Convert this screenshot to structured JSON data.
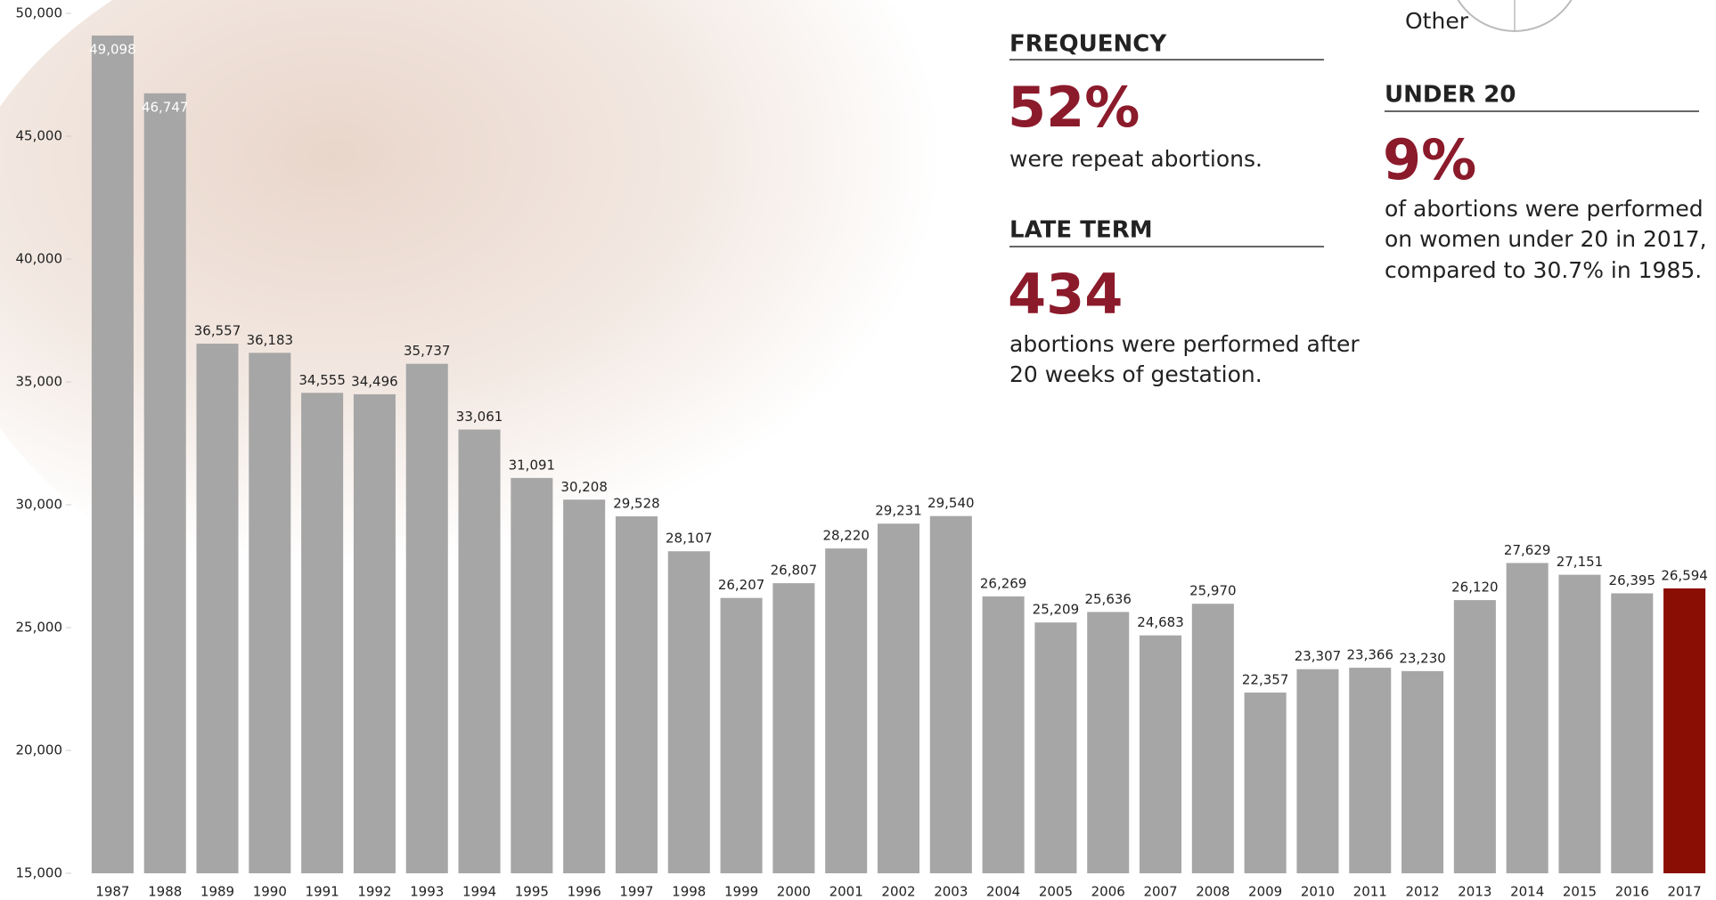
{
  "chart_data": {
    "type": "bar",
    "categories": [
      "1987",
      "1988",
      "1989",
      "1990",
      "1991",
      "1992",
      "1993",
      "1994",
      "1995",
      "1996",
      "1997",
      "1998",
      "1999",
      "2000",
      "2001",
      "2002",
      "2003",
      "2004",
      "2005",
      "2006",
      "2007",
      "2008",
      "2009",
      "2010",
      "2011",
      "2012",
      "2013",
      "2014",
      "2015",
      "2016",
      "2017"
    ],
    "values": [
      49098,
      46747,
      36557,
      36183,
      34555,
      34496,
      35737,
      33061,
      31091,
      30208,
      29528,
      28107,
      26207,
      26807,
      28220,
      29231,
      29540,
      26269,
      25209,
      25636,
      24683,
      25970,
      22357,
      23307,
      23366,
      23230,
      26120,
      27629,
      27151,
      26395,
      26594
    ],
    "value_labels": [
      "49,098",
      "46,747",
      "36,557",
      "36,183",
      "34,555",
      "34,496",
      "35,737",
      "33,061",
      "31,091",
      "30,208",
      "29,528",
      "28,107",
      "26,207",
      "26,807",
      "28,220",
      "29,231",
      "29,540",
      "26,269",
      "25,209",
      "25,636",
      "24,683",
      "25,970",
      "22,357",
      "23,307",
      "23,366",
      "23,230",
      "26,120",
      "27,629",
      "27,151",
      "26,395",
      "26,594"
    ],
    "colors": [
      "#a6a6a6",
      "#a6a6a6",
      "#a6a6a6",
      "#a6a6a6",
      "#a6a6a6",
      "#a6a6a6",
      "#a6a6a6",
      "#a6a6a6",
      "#a6a6a6",
      "#a6a6a6",
      "#a6a6a6",
      "#a6a6a6",
      "#a6a6a6",
      "#a6a6a6",
      "#a6a6a6",
      "#a6a6a6",
      "#a6a6a6",
      "#a6a6a6",
      "#a6a6a6",
      "#a6a6a6",
      "#a6a6a6",
      "#a6a6a6",
      "#a6a6a6",
      "#a6a6a6",
      "#a6a6a6",
      "#a6a6a6",
      "#a6a6a6",
      "#a6a6a6",
      "#a6a6a6",
      "#a6a6a6",
      "#8b0e04"
    ],
    "ylim": [
      15000,
      50000
    ],
    "yticks": [
      {
        "value": 15000,
        "label": "15,000"
      },
      {
        "value": 20000,
        "label": "20,000"
      },
      {
        "value": 25000,
        "label": "25,000"
      },
      {
        "value": 30000,
        "label": "30,000"
      },
      {
        "value": 35000,
        "label": "35,000"
      },
      {
        "value": 40000,
        "label": "40,000"
      },
      {
        "value": 45000,
        "label": "45,000"
      },
      {
        "value": 50000,
        "label": "50,000"
      }
    ]
  },
  "panel": {
    "pie_label": "Other",
    "frequency": {
      "heading": "FREQUENCY",
      "stat": "52%",
      "text": "were repeat abortions."
    },
    "late_term": {
      "heading": "LATE TERM",
      "stat": "434",
      "lines": [
        "abortions were performed after",
        "20 weeks of gestation."
      ]
    },
    "under_20": {
      "heading": "UNDER 20",
      "stat": "9%",
      "lines": [
        "of abortions were performed",
        "on women under 20 in 2017,",
        "compared to 30.7% in 1985."
      ]
    }
  }
}
